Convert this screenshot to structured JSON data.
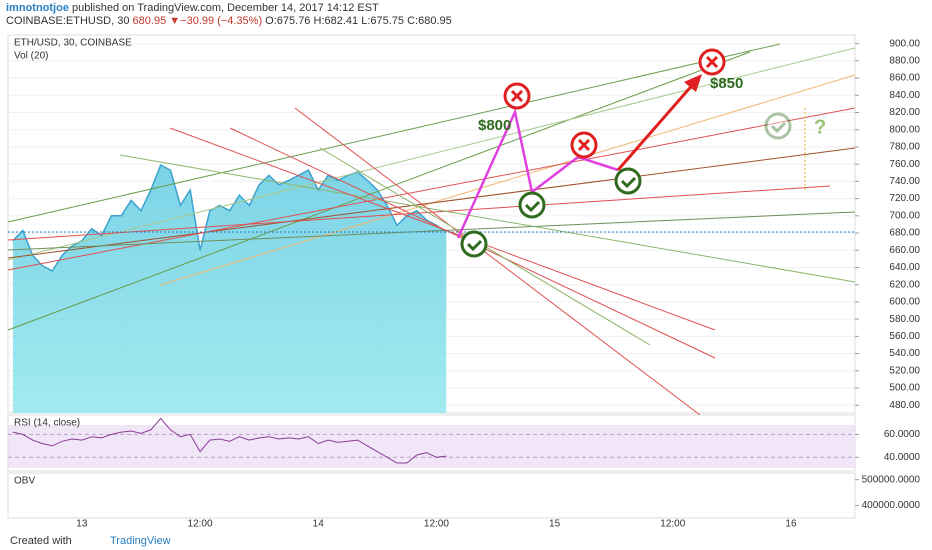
{
  "header": {
    "author": "imnotnotjoe",
    "published": "published on TradingView.com, December 14, 2017 14:12 EST",
    "symbol": "COINBASE:ETHUSD, 30",
    "last": "680.95",
    "change": "−30.99 (−4.35%)",
    "open": "O:675.76",
    "high": "H:682.41",
    "low": "L:675.75",
    "close": "C:680.95"
  },
  "chart_data": [
    {
      "type": "area",
      "title": "ETH/USD, 30, COINBASE",
      "subtitle": "Vol (20)",
      "color": "#3ba3d0",
      "categories": [
        null,
        null,
        null,
        null,
        null,
        null,
        null,
        "13",
        null,
        null,
        null,
        null,
        null,
        null,
        null,
        null,
        null,
        null,
        null,
        "12:00",
        null,
        null,
        null,
        null,
        null,
        null,
        null,
        null,
        null,
        null,
        null,
        "14",
        null,
        null,
        null,
        null,
        null,
        null,
        null,
        null,
        null,
        null,
        null,
        "12:00",
        null,
        null,
        null,
        null,
        null,
        null,
        null,
        null,
        null,
        null,
        null,
        "15",
        null,
        null,
        null,
        null,
        null,
        null,
        null,
        null,
        null,
        null,
        null,
        "12:00",
        null,
        null,
        null,
        null,
        null,
        null,
        null,
        null,
        null,
        null,
        null,
        "16",
        null,
        null,
        null,
        null,
        null,
        null
      ],
      "values": [
        671,
        683,
        654,
        642,
        636,
        654,
        665,
        671,
        685,
        677,
        700,
        700,
        718,
        706,
        730,
        759,
        753,
        712,
        730,
        660,
        706,
        712,
        706,
        724,
        712,
        736,
        747,
        736,
        741,
        747,
        753,
        730,
        747,
        741,
        747,
        751,
        741,
        730,
        712,
        689,
        700,
        706,
        695,
        689,
        681,
        null,
        null,
        null,
        null,
        null,
        null,
        null,
        null,
        null,
        null,
        null,
        null,
        null,
        null,
        null,
        null,
        null,
        null,
        null,
        null,
        null,
        null,
        null,
        null,
        null,
        null,
        null,
        null,
        null,
        null,
        null,
        null,
        null,
        null,
        null,
        null,
        null,
        null,
        null,
        null,
        null
      ],
      "ylim": [
        471,
        910
      ],
      "yticks": [
        {
          "value": 480,
          "label": "480.00"
        },
        {
          "value": 500,
          "label": "500.00"
        },
        {
          "value": 520,
          "label": "520.00"
        },
        {
          "value": 540,
          "label": "540.00"
        },
        {
          "value": 560,
          "label": "560.00"
        },
        {
          "value": 580,
          "label": "580.00"
        },
        {
          "value": 600,
          "label": "600.00"
        },
        {
          "value": 620,
          "label": "620.00"
        },
        {
          "value": 640,
          "label": "640.00"
        },
        {
          "value": 660,
          "label": "660.00"
        },
        {
          "value": 680,
          "label": "680.00"
        },
        {
          "value": 700,
          "label": "700.00"
        },
        {
          "value": 720,
          "label": "720.00"
        },
        {
          "value": 740,
          "label": "740.00"
        },
        {
          "value": 760,
          "label": "760.00"
        },
        {
          "value": 780,
          "label": "780.00"
        },
        {
          "value": 800,
          "label": "800.00"
        },
        {
          "value": 820,
          "label": "820.00"
        },
        {
          "value": 840,
          "label": "840.00"
        },
        {
          "value": 860,
          "label": "860.00"
        },
        {
          "value": 880,
          "label": "880.00"
        },
        {
          "value": 900,
          "label": "900.00"
        }
      ],
      "annotations": [
        "$800",
        "$850",
        "?"
      ],
      "grid": true
    },
    {
      "type": "line",
      "title": "RSI (14, close)",
      "color": "#8a3d97",
      "values": [
        62,
        60,
        55,
        52,
        50,
        54,
        56,
        55,
        58,
        57,
        60,
        62,
        63,
        61,
        64,
        74,
        64,
        58,
        60,
        45,
        55,
        56,
        54,
        58,
        55,
        57,
        58,
        56,
        57,
        56,
        58,
        52,
        55,
        53,
        54,
        55,
        50,
        45,
        40,
        35,
        35,
        42,
        44,
        40,
        41
      ],
      "ylim": [
        28,
        77
      ],
      "yticks": [
        {
          "value": 40,
          "label": "40.0000"
        },
        {
          "value": 60,
          "label": "60.0000"
        }
      ]
    },
    {
      "type": "line",
      "title": "OBV",
      "color": "#3ba3d0",
      "values": [],
      "ylim": [
        352000,
        526000
      ],
      "yticks": [
        {
          "value": 400000,
          "label": "400000.0000"
        },
        {
          "value": 500000,
          "label": "500000.0000"
        }
      ]
    }
  ],
  "footer": {
    "created": "Created with",
    "brand": "TradingView"
  }
}
